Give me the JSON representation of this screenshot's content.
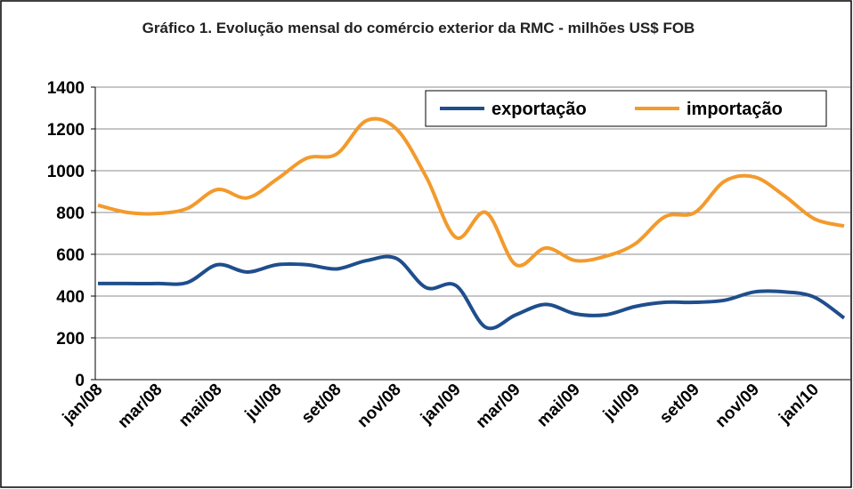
{
  "chart_data": {
    "type": "line",
    "title": "Gráfico 1. Evolução mensal do comércio exterior da RMC - milhões US$ FOB",
    "categories": [
      "jan/08",
      null,
      "mar/08",
      null,
      "mai/08",
      null,
      "jul/08",
      null,
      "set/08",
      null,
      "nov/08",
      null,
      "jan/09",
      null,
      "mar/09",
      null,
      "mai/09",
      null,
      "jul/09",
      null,
      "set/09",
      null,
      "nov/09",
      null,
      "jan/10",
      null
    ],
    "series": [
      {
        "name": "exportação",
        "color": "#1f4e8c",
        "values": [
          460,
          460,
          460,
          465,
          550,
          515,
          550,
          550,
          530,
          570,
          580,
          440,
          450,
          250,
          310,
          360,
          315,
          310,
          350,
          370,
          370,
          380,
          420,
          420,
          395,
          295
        ]
      },
      {
        "name": "importação",
        "color": "#f39a2c",
        "values": [
          835,
          800,
          795,
          820,
          910,
          870,
          960,
          1060,
          1080,
          1240,
          1200,
          970,
          680,
          800,
          550,
          630,
          570,
          590,
          650,
          780,
          800,
          950,
          970,
          880,
          770,
          735
        ]
      }
    ],
    "ylim": [
      0,
      1400
    ],
    "yticks": [
      0,
      200,
      400,
      600,
      800,
      1000,
      1200,
      1400
    ],
    "grid": true,
    "legend": "top-right"
  }
}
